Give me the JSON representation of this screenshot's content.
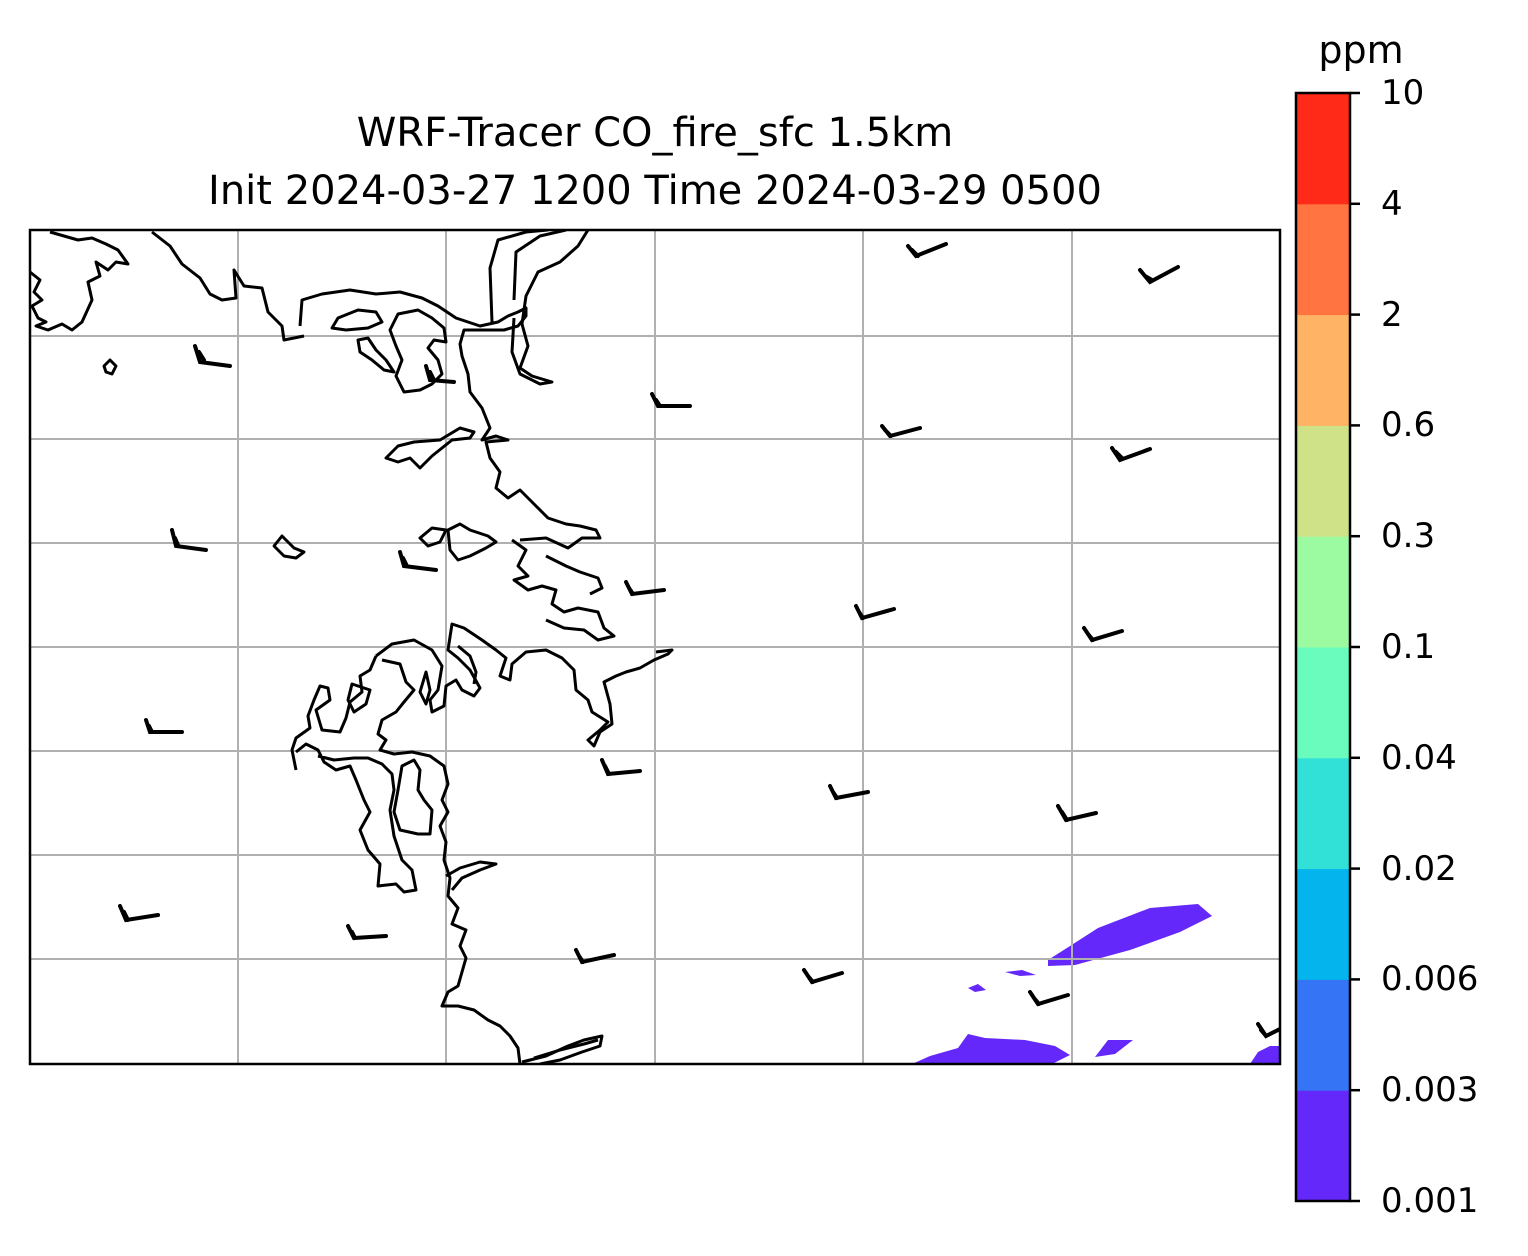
{
  "title": {
    "line1": "WRF-Tracer CO_fire_sfc 1.5km",
    "line2": "Init 2024-03-27 1200 Time 2024-03-29 0500"
  },
  "colorbar": {
    "unit": "ppm",
    "levels": [
      "0.001",
      "0.003",
      "0.006",
      "0.02",
      "0.04",
      "0.1",
      "0.3",
      "0.6",
      "2",
      "4",
      "10"
    ],
    "colors": [
      "#6428fa",
      "#3574f4",
      "#03b5ec",
      "#31e1d8",
      "#69fcbd",
      "#9cfba0",
      "#d0e288",
      "#ffb364",
      "#ff7440",
      "#ff2a18"
    ]
  },
  "map": {
    "gridlines": true,
    "grid_color": "#b0b0b0",
    "coastline_color": "#000000",
    "plume_color": "#6428fa",
    "plume_level": "0.001-0.003 ppm",
    "wind_barbs": "black barbs, light winds"
  }
}
